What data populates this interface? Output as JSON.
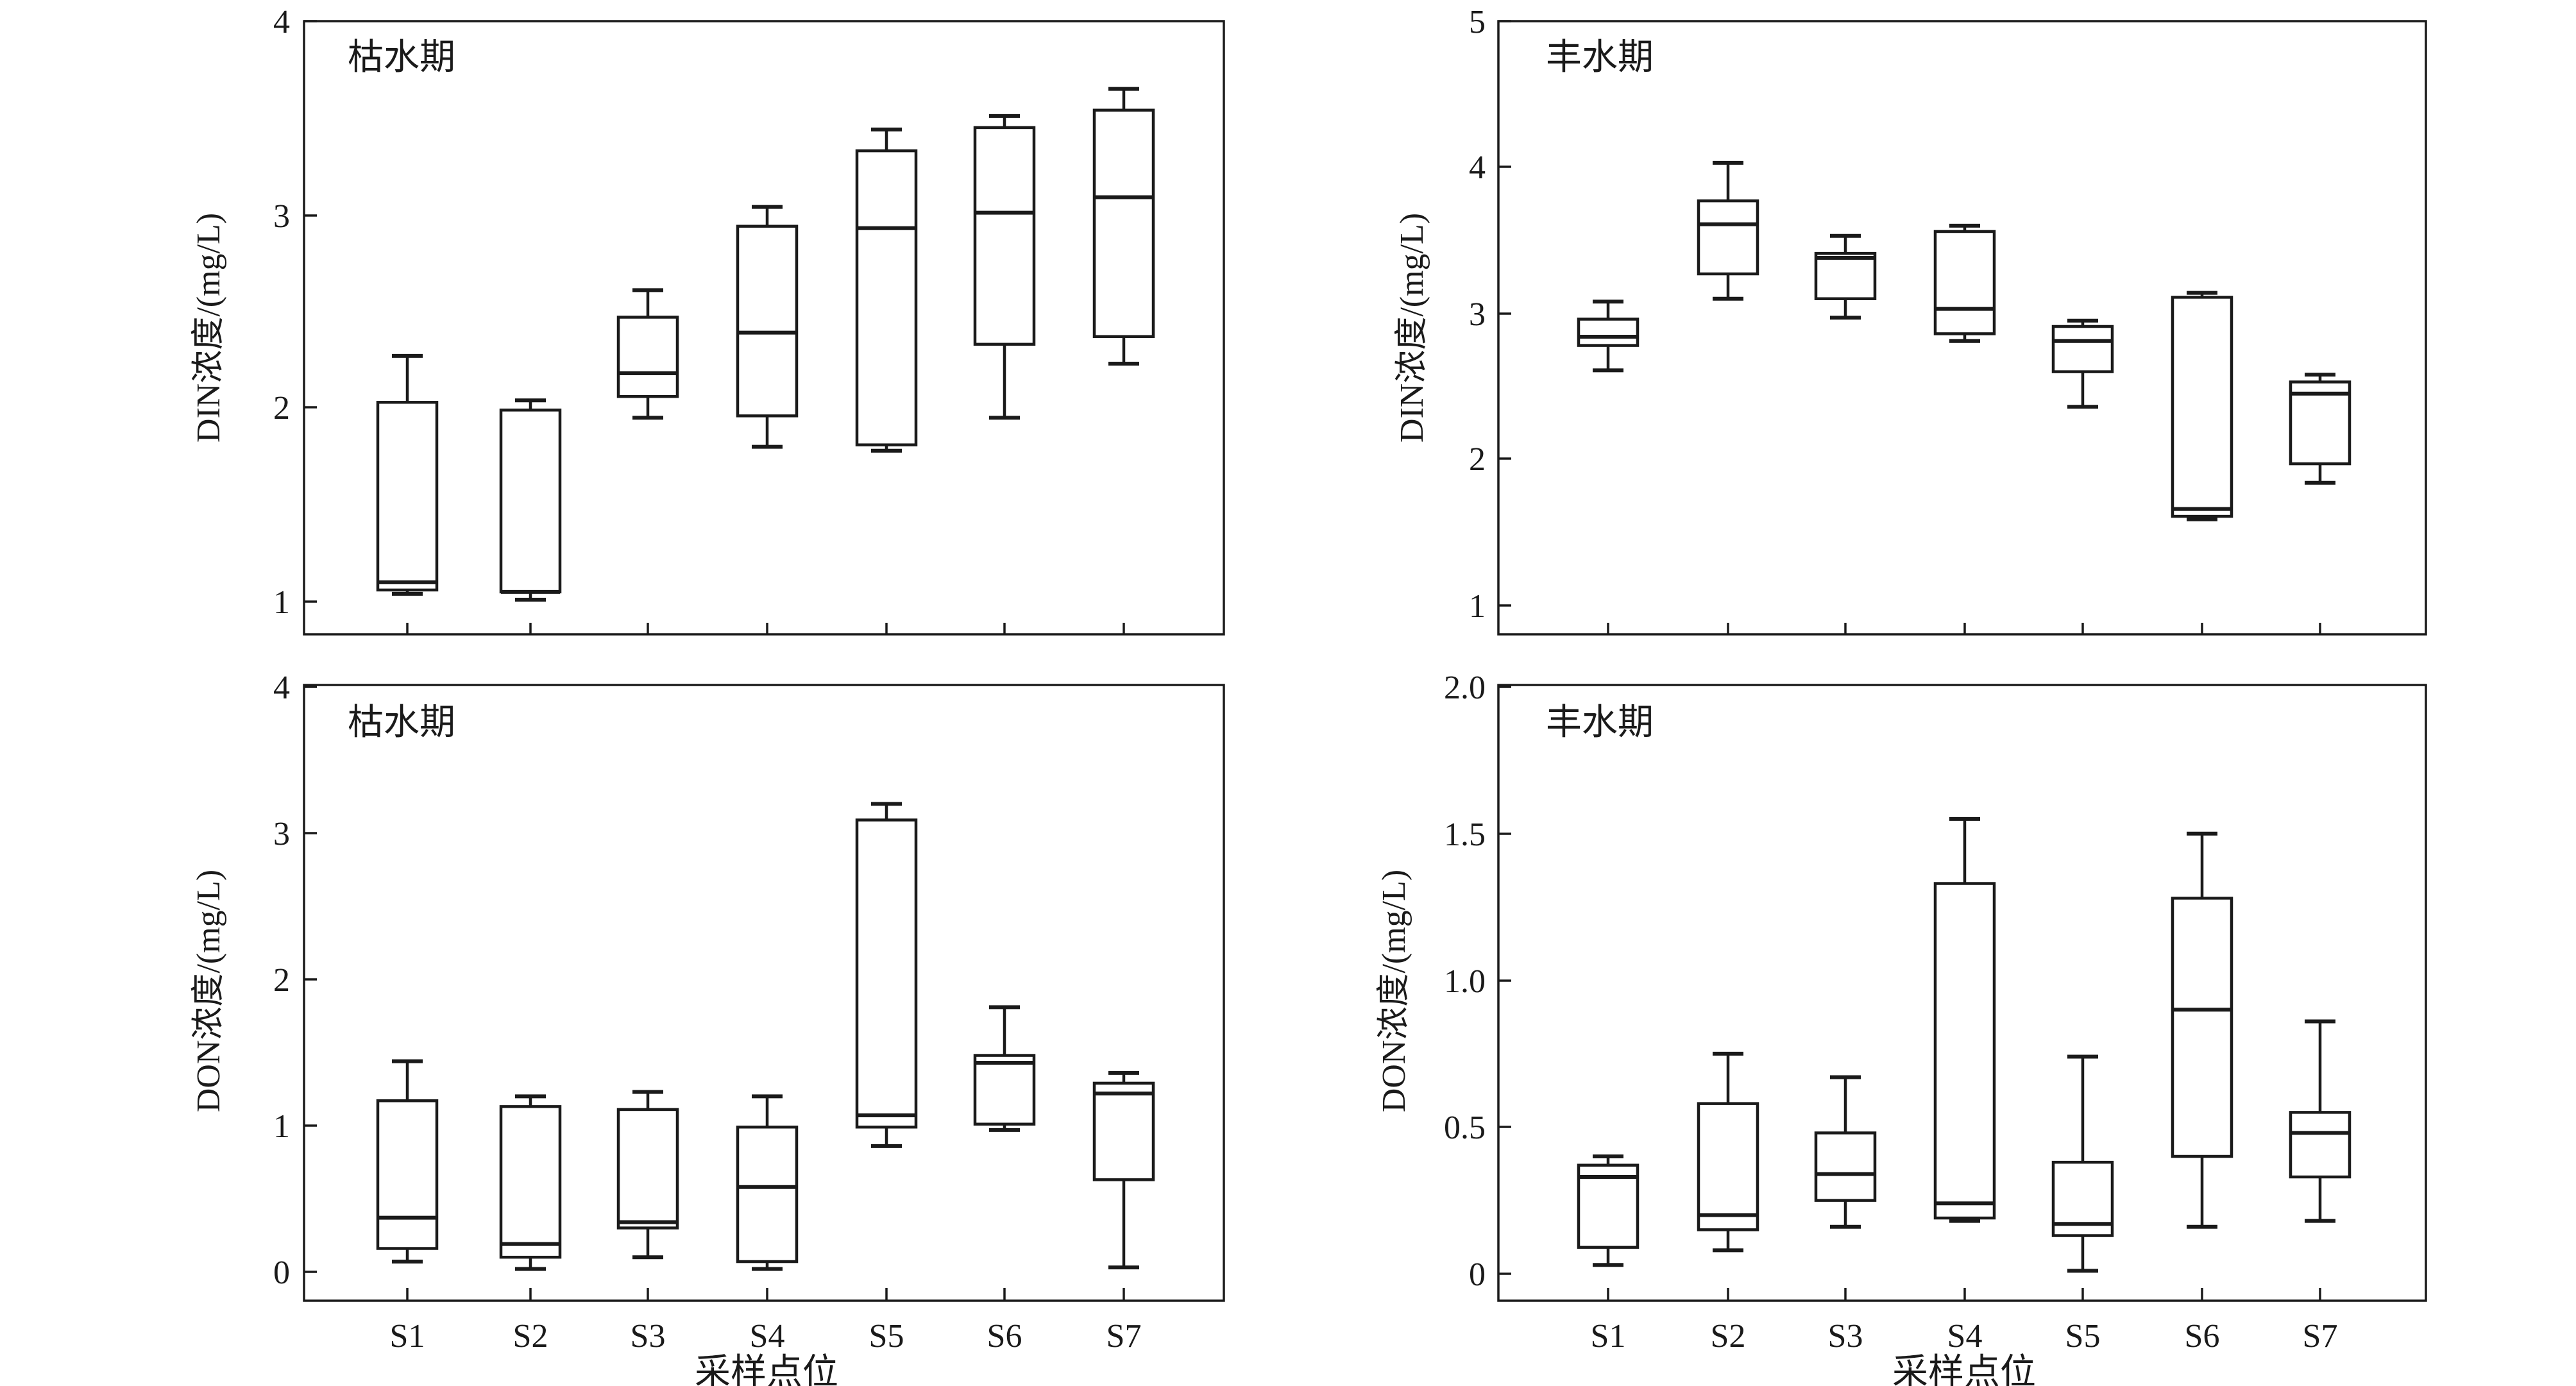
{
  "chart_data": [
    {
      "type": "box",
      "title": "枯水期",
      "xlabel": "",
      "ylabel": "DIN浓度/(mg/L)",
      "ylim": [
        0.85,
        4
      ],
      "yticks": [
        1,
        2,
        3,
        4
      ],
      "ytick_labels": [
        "1",
        "2",
        "3",
        "4"
      ],
      "categories": [
        "S1",
        "S2",
        "S3",
        "S4",
        "S5",
        "S6",
        "S7"
      ],
      "series": [
        {
          "min": 1.04,
          "q1": 1.06,
          "median": 1.1,
          "q3": 2.03,
          "max": 2.27
        },
        {
          "min": 1.01,
          "q1": 1.05,
          "median": 1.05,
          "q3": 1.99,
          "max": 2.04
        },
        {
          "min": 1.95,
          "q1": 2.06,
          "median": 2.18,
          "q3": 2.47,
          "max": 2.61
        },
        {
          "min": 1.8,
          "q1": 1.96,
          "median": 2.39,
          "q3": 2.94,
          "max": 3.04
        },
        {
          "min": 1.78,
          "q1": 1.81,
          "median": 2.93,
          "q3": 3.33,
          "max": 3.44
        },
        {
          "min": 1.95,
          "q1": 2.33,
          "median": 3.01,
          "q3": 3.45,
          "max": 3.51
        },
        {
          "min": 2.23,
          "q1": 2.37,
          "median": 3.09,
          "q3": 3.54,
          "max": 3.65
        }
      ]
    },
    {
      "type": "box",
      "title": "丰水期",
      "xlabel": "",
      "ylabel": "DIN浓度/(mg/L)",
      "ylim": [
        0.8,
        5
      ],
      "yticks": [
        1,
        2,
        3,
        4,
        5
      ],
      "ytick_labels": [
        "1",
        "2",
        "3",
        "4",
        "5"
      ],
      "categories": [
        "S1",
        "S2",
        "S3",
        "S4",
        "S5",
        "S6",
        "S7"
      ],
      "series": [
        {
          "min": 2.61,
          "q1": 2.78,
          "median": 2.84,
          "q3": 2.96,
          "max": 3.08
        },
        {
          "min": 3.1,
          "q1": 3.27,
          "median": 3.61,
          "q3": 3.77,
          "max": 4.03
        },
        {
          "min": 2.97,
          "q1": 3.1,
          "median": 3.38,
          "q3": 3.41,
          "max": 3.53
        },
        {
          "min": 2.81,
          "q1": 2.86,
          "median": 3.03,
          "q3": 3.56,
          "max": 3.6
        },
        {
          "min": 2.36,
          "q1": 2.6,
          "median": 2.81,
          "q3": 2.91,
          "max": 2.95
        },
        {
          "min": 1.59,
          "q1": 1.61,
          "median": 1.66,
          "q3": 3.11,
          "max": 3.14
        },
        {
          "min": 1.84,
          "q1": 1.97,
          "median": 2.45,
          "q3": 2.53,
          "max": 2.58
        }
      ]
    },
    {
      "type": "box",
      "title": "枯水期",
      "xlabel": "采样点位",
      "ylabel": "DON浓度/(mg/L)",
      "ylim": [
        -0.2,
        4
      ],
      "yticks": [
        0,
        1,
        2,
        3,
        4
      ],
      "ytick_labels": [
        "0",
        "1",
        "2",
        "3",
        "4"
      ],
      "categories": [
        "S1",
        "S2",
        "S3",
        "S4",
        "S5",
        "S6",
        "S7"
      ],
      "series": [
        {
          "min": 0.07,
          "q1": 0.16,
          "median": 0.37,
          "q3": 1.17,
          "max": 1.44
        },
        {
          "min": 0.02,
          "q1": 0.1,
          "median": 0.19,
          "q3": 1.13,
          "max": 1.2
        },
        {
          "min": 0.1,
          "q1": 0.3,
          "median": 0.34,
          "q3": 1.11,
          "max": 1.23
        },
        {
          "min": 0.02,
          "q1": 0.07,
          "median": 0.58,
          "q3": 0.99,
          "max": 1.2
        },
        {
          "min": 0.86,
          "q1": 0.99,
          "median": 1.07,
          "q3": 3.09,
          "max": 3.2
        },
        {
          "min": 0.97,
          "q1": 1.01,
          "median": 1.43,
          "q3": 1.48,
          "max": 1.81
        },
        {
          "min": 0.03,
          "q1": 0.63,
          "median": 1.22,
          "q3": 1.29,
          "max": 1.36
        }
      ]
    },
    {
      "type": "box",
      "title": "丰水期",
      "xlabel": "采样点位",
      "ylabel": "DON浓度/(mg/L)",
      "ylim": [
        -0.1,
        2.0
      ],
      "yticks": [
        0,
        0.5,
        1.0,
        1.5,
        2.0
      ],
      "ytick_labels": [
        "0",
        "0.5",
        "1.0",
        "1.5",
        "2.0"
      ],
      "categories": [
        "S1",
        "S2",
        "S3",
        "S4",
        "S5",
        "S6",
        "S7"
      ],
      "series": [
        {
          "min": 0.03,
          "q1": 0.09,
          "median": 0.33,
          "q3": 0.37,
          "max": 0.4
        },
        {
          "min": 0.08,
          "q1": 0.15,
          "median": 0.2,
          "q3": 0.58,
          "max": 0.75
        },
        {
          "min": 0.16,
          "q1": 0.25,
          "median": 0.34,
          "q3": 0.48,
          "max": 0.67
        },
        {
          "min": 0.18,
          "q1": 0.19,
          "median": 0.24,
          "q3": 1.33,
          "max": 1.55
        },
        {
          "min": 0.01,
          "q1": 0.13,
          "median": 0.17,
          "q3": 0.38,
          "max": 0.74
        },
        {
          "min": 0.16,
          "q1": 0.4,
          "median": 0.9,
          "q3": 1.28,
          "max": 1.5
        },
        {
          "min": 0.18,
          "q1": 0.33,
          "median": 0.48,
          "q3": 0.55,
          "max": 0.86
        }
      ]
    }
  ]
}
